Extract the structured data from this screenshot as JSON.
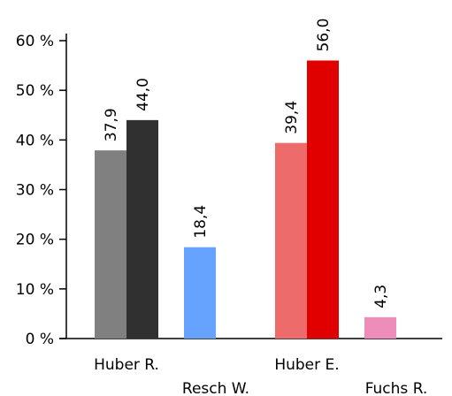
{
  "chart_data": {
    "type": "bar",
    "title": "",
    "xlabel": "",
    "ylabel": "",
    "ylim": [
      0,
      60
    ],
    "yticks": [
      {
        "value": 0,
        "label": "0 %"
      },
      {
        "value": 10,
        "label": "10 %"
      },
      {
        "value": 20,
        "label": "20 %"
      },
      {
        "value": 30,
        "label": "30 %"
      },
      {
        "value": 40,
        "label": "40 %"
      },
      {
        "value": 50,
        "label": "50 %"
      },
      {
        "value": 60,
        "label": "60 %"
      }
    ],
    "categories": [
      "Huber R.",
      "Resch W.",
      "Huber E.",
      "Fuchs R."
    ],
    "bars": [
      {
        "category": "Huber R.",
        "value": 37.9,
        "label": "37,9",
        "color": "#808080"
      },
      {
        "category": "Huber R.",
        "value": 44.0,
        "label": "44,0",
        "color": "#303030"
      },
      {
        "category": "Resch W.",
        "value": 18.4,
        "label": "18,4",
        "color": "#66a3ff"
      },
      {
        "category": "Huber E.",
        "value": 39.4,
        "label": "39,4",
        "color": "#ee6b6b"
      },
      {
        "category": "Huber E.",
        "value": 56.0,
        "label": "56,0",
        "color": "#e00000"
      },
      {
        "category": "Fuchs R.",
        "value": 4.3,
        "label": "4,3",
        "color": "#ee8cba"
      }
    ],
    "grid": false,
    "legend": "none"
  }
}
